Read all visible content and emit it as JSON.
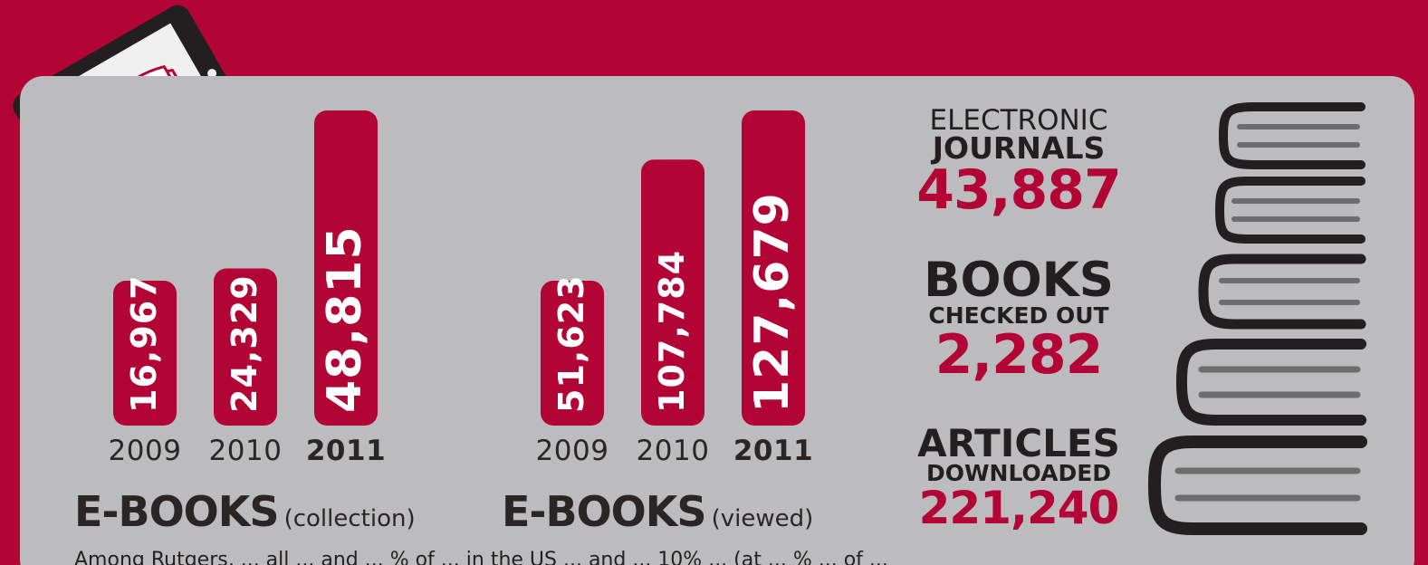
{
  "colors": {
    "brand_red": "#b30535",
    "panel_gray": "#bcbcbe",
    "text_dark": "#231f20"
  },
  "chart_data": [
    {
      "type": "bar",
      "title": "E-BOOKS",
      "subtitle": "(collection)",
      "categories": [
        "2009",
        "2010",
        "2011"
      ],
      "values": [
        16967,
        24329,
        48815
      ],
      "value_labels": [
        "16,967",
        "24,329",
        "48,815"
      ]
    },
    {
      "type": "bar",
      "title": "E-BOOKS",
      "subtitle": "(viewed)",
      "categories": [
        "2009",
        "2010",
        "2011"
      ],
      "values": [
        51623,
        107784,
        127679
      ],
      "value_labels": [
        "51,623",
        "107,784",
        "127,679"
      ]
    }
  ],
  "stats": {
    "journals": {
      "line1": "ELECTRONIC",
      "line2": "JOURNALS",
      "value": "43,887"
    },
    "books": {
      "line1": "BOOKS",
      "line2": "CHECKED OUT",
      "value": "2,282"
    },
    "articles": {
      "line1": "ARTICLES",
      "line2": "DOWNLOADED",
      "value": "221,240"
    }
  },
  "icons": {
    "tablet": "tablet-book-icon",
    "books": "book-stack-icon"
  },
  "footnote": "Among Rutgers, ... all ... and ... % of ... in the US ... and ... 10% ... (at ... % ... of ..."
}
